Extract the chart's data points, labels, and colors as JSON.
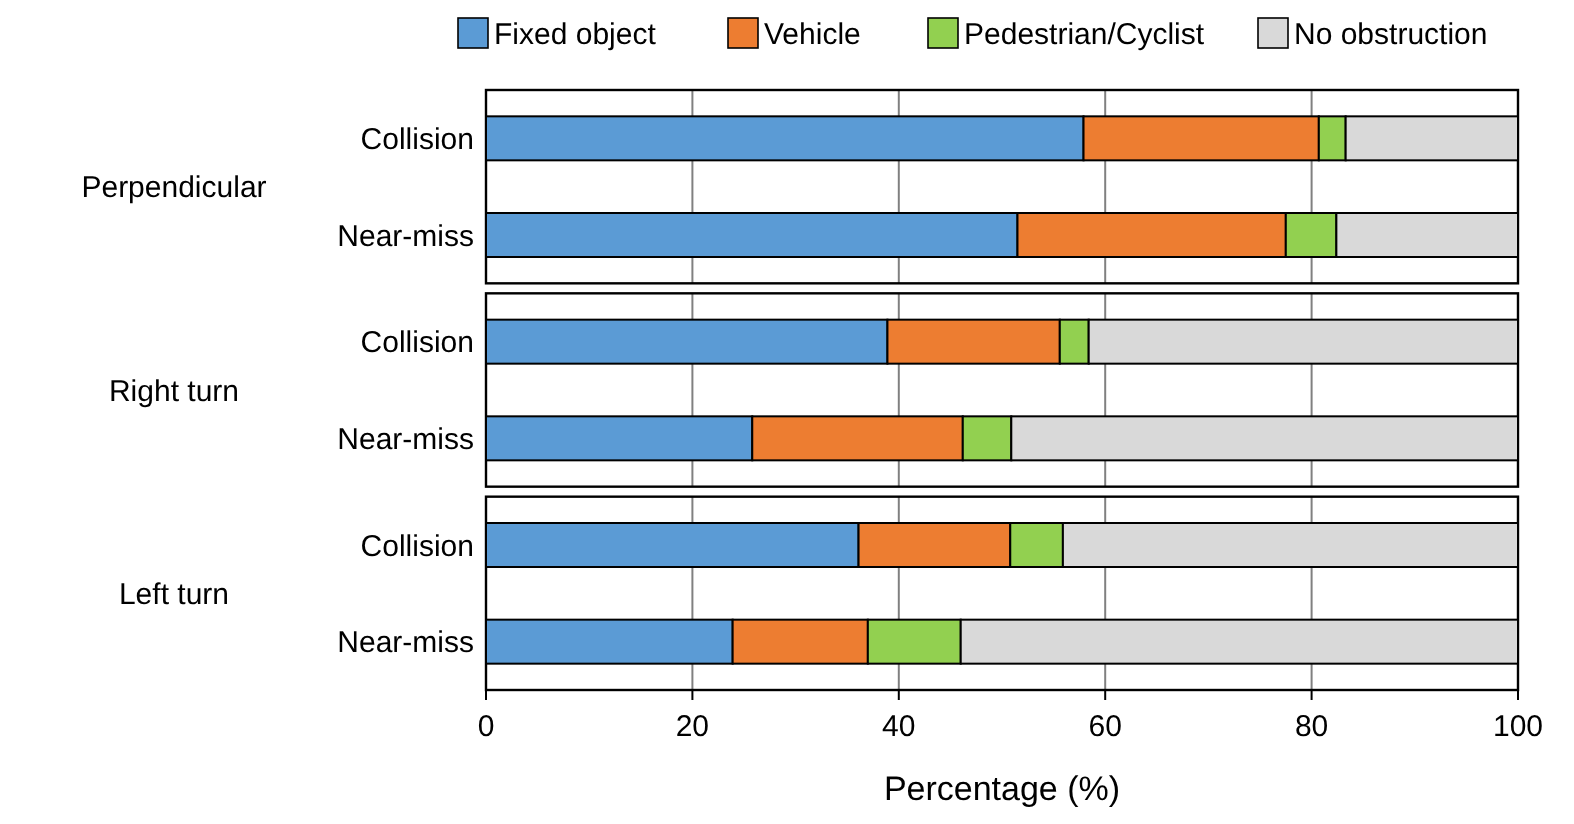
{
  "chart_data": {
    "type": "bar",
    "orientation": "horizontal",
    "stacked": true,
    "xlabel": "Percentage (%)",
    "categories": [
      "Collision",
      "Near-miss",
      "Collision",
      "Near-miss",
      "Collision",
      "Near-miss"
    ],
    "annotations": [
      "Perpendicular",
      "Right turn",
      "Left turn"
    ],
    "series": [
      {
        "name": "Fixed object",
        "color": "#5b9bd5",
        "values": [
          57.9,
          51.5,
          38.9,
          25.8,
          36.1,
          23.9
        ]
      },
      {
        "name": "Vehicle",
        "color": "#ed7d31",
        "values": [
          22.8,
          26.0,
          16.7,
          20.4,
          14.7,
          13.1
        ]
      },
      {
        "name": "Pedestrian/Cyclist",
        "color": "#92d050",
        "values": [
          2.6,
          4.9,
          2.8,
          4.7,
          5.1,
          9.0
        ]
      },
      {
        "name": "No obstruction",
        "color": "#d9d9d9",
        "values": [
          16.7,
          17.6,
          41.6,
          49.1,
          44.1,
          54.0
        ]
      }
    ],
    "xlim": [
      0,
      100
    ],
    "xticks": [
      0,
      20,
      40,
      60,
      80,
      100
    ],
    "grid": "x",
    "legend": "top"
  }
}
